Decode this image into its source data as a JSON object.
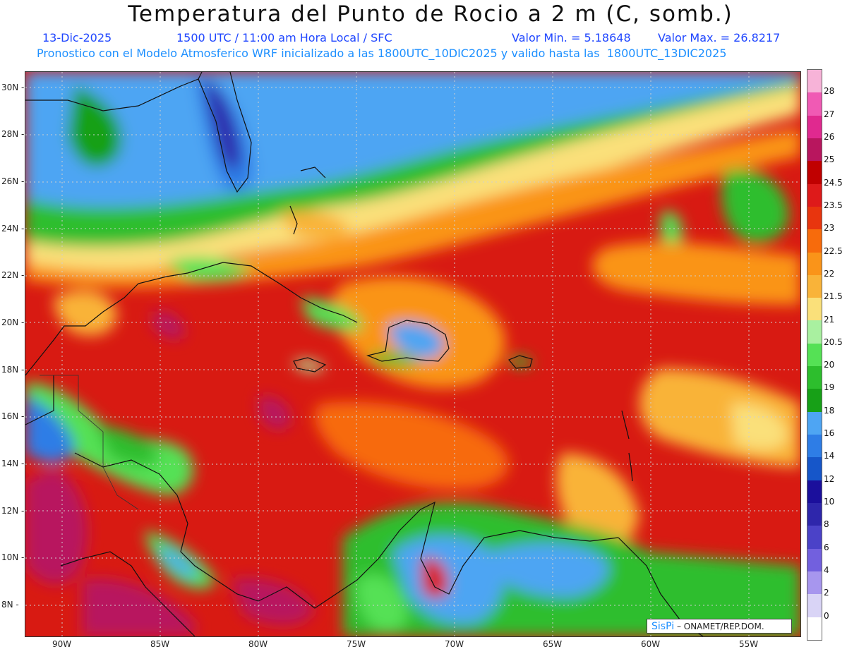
{
  "header": {
    "title": "Temperatura del Punto de Rocio a 2 m (C, somb.)",
    "date": "13-Dic-2025",
    "time": "1500 UTC / 11:00 am Hora Local / SFC",
    "vmin": "Valor Min. = 5.18648",
    "vmax": "Valor Max. = 26.8217",
    "forecast": "Pronostico con el Modelo Atmosferico WRF inicializado a las 1800UTC_10DIC2025 y valido hasta las  1800UTC_13DIC2025"
  },
  "map": {
    "lat_labels": [
      "30N",
      "28N",
      "26N",
      "24N",
      "22N",
      "20N",
      "18N",
      "16N",
      "14N",
      "12N",
      "10N",
      "8N"
    ],
    "lon_labels": [
      "90W",
      "85W",
      "80W",
      "75W",
      "70W",
      "65W",
      "60W",
      "55W"
    ]
  },
  "colorbar": {
    "labels": [
      "28",
      "27",
      "26",
      "25",
      "24.5",
      "23.5",
      "23",
      "22.5",
      "22",
      "21.5",
      "21",
      "20.5",
      "20",
      "19",
      "18",
      "16",
      "14",
      "12",
      "10",
      "8",
      "6",
      "4",
      "2",
      "0"
    ],
    "colors": [
      "#f7b3d8",
      "#f05ab4",
      "#e0298f",
      "#b8165e",
      "#c00000",
      "#de1a1a",
      "#e8350e",
      "#f76b0c",
      "#fa9419",
      "#f9b339",
      "#fae07a",
      "#a9f0a0",
      "#55e155",
      "#2dbe2d",
      "#17a017",
      "#4ea5f3",
      "#2e7de6",
      "#1656c9",
      "#1b0f9c",
      "#2e26ab",
      "#4b42c8",
      "#7260de",
      "#a796ee",
      "#d9d4f6",
      "#ffffff"
    ]
  },
  "logo": {
    "brand": "SisPi",
    "org": "– ONAMET/REP.DOM."
  }
}
